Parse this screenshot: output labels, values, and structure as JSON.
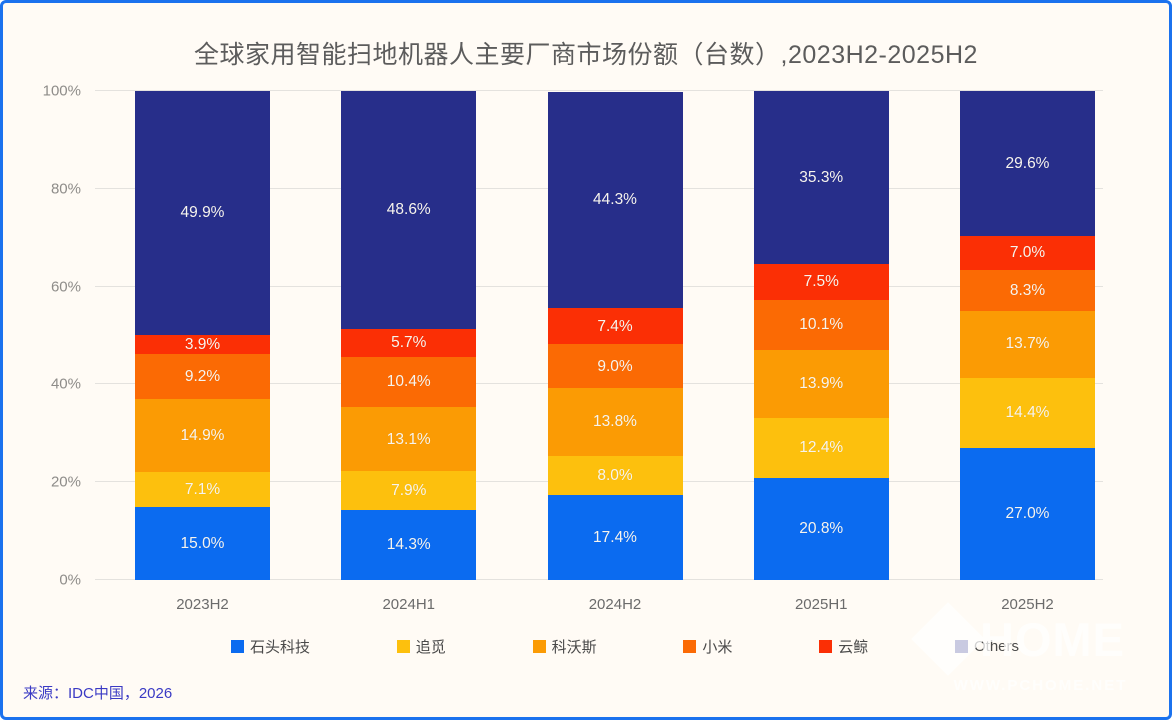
{
  "title": "全球家用智能扫地机器人主要厂商市场份额（台数）,2023H2-2025H2",
  "source": "来源：IDC中国，2026",
  "watermark": {
    "brand": "HOME",
    "url": "WWW.PCHOME.NET"
  },
  "frame": {
    "border_color": "#1B72EE",
    "background": "#FFFBF5"
  },
  "chart_data": {
    "type": "bar",
    "stacked": true,
    "title": "全球家用智能扫地机器人主要厂商市场份额（台数）,2023H2-2025H2",
    "categories": [
      "2023H2",
      "2024H1",
      "2024H2",
      "2025H1",
      "2025H2"
    ],
    "series": [
      {
        "name": "石头科技",
        "color": "#0B6BF0",
        "values": [
          15.0,
          14.3,
          17.4,
          20.8,
          27.0
        ]
      },
      {
        "name": "追觅",
        "color": "#FDC00D",
        "values": [
          7.1,
          7.9,
          8.0,
          12.4,
          14.4
        ]
      },
      {
        "name": "科沃斯",
        "color": "#FB9B04",
        "values": [
          14.9,
          13.1,
          13.8,
          13.9,
          13.7
        ]
      },
      {
        "name": "小米",
        "color": "#FB6A04",
        "values": [
          9.2,
          10.4,
          9.0,
          10.1,
          8.3
        ]
      },
      {
        "name": "云鲸",
        "color": "#FB2F05",
        "values": [
          3.9,
          5.7,
          7.4,
          7.5,
          7.0
        ]
      },
      {
        "name": "Others",
        "color": "#272E8A",
        "values": [
          49.9,
          48.6,
          44.3,
          35.3,
          29.6
        ]
      }
    ],
    "xlabel": "",
    "ylabel": "",
    "ylim": [
      0,
      100
    ],
    "yticks": [
      "0%",
      "20%",
      "40%",
      "60%",
      "80%",
      "100%"
    ],
    "grid": true,
    "legend_position": "bottom",
    "value_suffix": "%"
  }
}
